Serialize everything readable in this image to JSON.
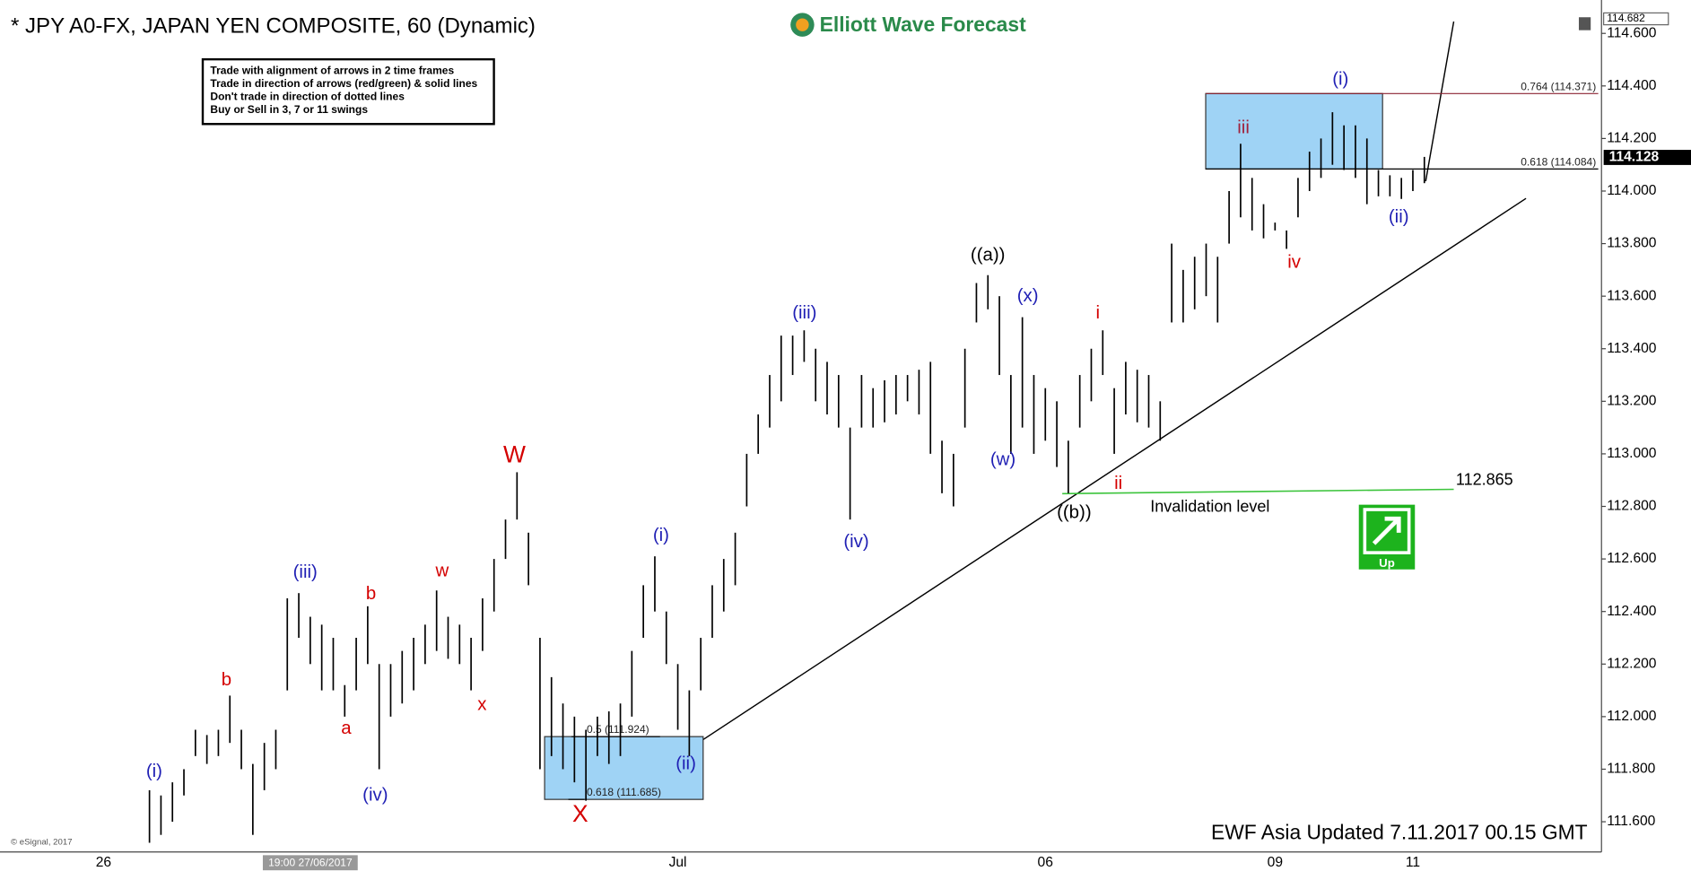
{
  "chart_data": {
    "type": "ohlc",
    "title": "* JPY A0-FX, JAPAN YEN COMPOSITE, 60 (Dynamic)",
    "brand": "Elliott Wave Forecast",
    "notes": [
      "Trade with alignment of arrows in 2 time frames",
      "Trade in direction of arrows (red/green) & solid lines",
      "Don't trade in direction of dotted lines",
      "Buy or Sell in 3, 7 or 11 swings"
    ],
    "footer": "EWF Asia Updated 7.11.2017 00.15 GMT",
    "copyright": "© eSignal, 2017",
    "color": "#000000",
    "categories": [
      "26",
      null,
      null,
      null,
      null,
      null,
      null,
      null,
      null,
      null,
      null,
      null,
      null,
      null,
      null,
      null,
      null,
      null,
      "19:00 27/06/2017",
      null,
      null,
      null,
      null,
      null,
      null,
      null,
      null,
      null,
      null,
      null,
      null,
      null,
      null,
      null,
      null,
      null,
      null,
      null,
      null,
      null,
      null,
      null,
      null,
      null,
      null,
      null,
      null,
      null,
      null,
      null,
      "Jul",
      null,
      null,
      null,
      null,
      null,
      null,
      null,
      null,
      null,
      null,
      null,
      null,
      null,
      null,
      null,
      null,
      null,
      null,
      null,
      null,
      null,
      null,
      null,
      null,
      null,
      null,
      null,
      null,
      null,
      null,
      null,
      "06",
      null,
      null,
      null,
      null,
      null,
      null,
      null,
      null,
      null,
      null,
      null,
      null,
      null,
      null,
      null,
      null,
      null,
      null,
      null,
      "09",
      null,
      null,
      null,
      null,
      null,
      null,
      null,
      null,
      null,
      null,
      null,
      "11",
      null
    ],
    "low": [
      null,
      null,
      null,
      null,
      111.52,
      111.55,
      111.6,
      111.7,
      111.85,
      111.82,
      111.85,
      111.9,
      111.8,
      111.55,
      111.72,
      111.8,
      112.1,
      112.3,
      112.2,
      112.1,
      112.1,
      112.0,
      112.1,
      112.2,
      111.8,
      112.0,
      112.05,
      112.1,
      112.2,
      112.25,
      112.22,
      112.2,
      112.1,
      112.25,
      112.4,
      112.6,
      112.75,
      112.5,
      111.8,
      111.85,
      111.8,
      111.75,
      111.68,
      111.85,
      111.82,
      111.85,
      112.0,
      112.3,
      112.4,
      112.2,
      111.95,
      111.85,
      112.1,
      112.3,
      112.4,
      112.5,
      112.8,
      113.0,
      113.1,
      113.2,
      113.3,
      113.35,
      113.2,
      113.15,
      113.1,
      112.75,
      113.1,
      113.1,
      113.12,
      113.15,
      113.2,
      113.15,
      113.0,
      112.85,
      112.8,
      113.1,
      113.5,
      113.55,
      113.3,
      113.0,
      113.1,
      113.0,
      113.05,
      112.95,
      112.85,
      113.1,
      113.2,
      113.3,
      113.0,
      113.15,
      113.12,
      113.1,
      113.05,
      113.5,
      113.5,
      113.55,
      113.6,
      113.5,
      113.8,
      113.9,
      113.85,
      113.82,
      113.85,
      113.78,
      113.9,
      114.0,
      114.05,
      114.1,
      114.08,
      114.05,
      113.95,
      113.98,
      113.98,
      113.97,
      114.0,
      114.03
    ],
    "high": [
      null,
      null,
      null,
      null,
      111.72,
      111.7,
      111.75,
      111.8,
      111.95,
      111.93,
      111.95,
      112.08,
      111.95,
      111.82,
      111.9,
      111.95,
      112.45,
      112.47,
      112.38,
      112.35,
      112.3,
      112.12,
      112.3,
      112.42,
      112.2,
      112.2,
      112.25,
      112.3,
      112.35,
      112.48,
      112.38,
      112.35,
      112.3,
      112.45,
      112.6,
      112.75,
      112.93,
      112.7,
      112.3,
      112.15,
      112.05,
      112.0,
      111.95,
      112.0,
      112.02,
      112.05,
      112.25,
      112.5,
      112.61,
      112.4,
      112.2,
      112.1,
      112.3,
      112.5,
      112.6,
      112.7,
      113.0,
      113.15,
      113.3,
      113.45,
      113.45,
      113.47,
      113.4,
      113.35,
      113.3,
      113.1,
      113.3,
      113.25,
      113.28,
      113.3,
      113.3,
      113.32,
      113.35,
      113.05,
      113.0,
      113.4,
      113.65,
      113.68,
      113.6,
      113.3,
      113.52,
      113.3,
      113.25,
      113.2,
      113.05,
      113.3,
      113.4,
      113.47,
      113.25,
      113.35,
      113.32,
      113.3,
      113.2,
      113.8,
      113.7,
      113.75,
      113.8,
      113.75,
      114.0,
      114.18,
      114.05,
      113.95,
      113.88,
      113.85,
      114.05,
      114.15,
      114.2,
      114.3,
      114.25,
      114.25,
      114.2,
      114.08,
      114.06,
      114.05,
      114.08,
      114.13
    ],
    "ylim": [
      111.485,
      114.686
    ],
    "yticks": [
      {
        "value": 111.6,
        "label": "111.600"
      },
      {
        "value": 111.8,
        "label": "111.800"
      },
      {
        "value": 112.0,
        "label": "112.000"
      },
      {
        "value": 112.2,
        "label": "112.200"
      },
      {
        "value": 112.4,
        "label": "112.400"
      },
      {
        "value": 112.6,
        "label": "112.600"
      },
      {
        "value": 112.8,
        "label": "112.800"
      },
      {
        "value": 113.0,
        "label": "113.000"
      },
      {
        "value": 113.2,
        "label": "113.200"
      },
      {
        "value": 113.4,
        "label": "113.400"
      },
      {
        "value": 113.6,
        "label": "113.600"
      },
      {
        "value": 113.8,
        "label": "113.800"
      },
      {
        "value": 114.0,
        "label": "114.000"
      },
      {
        "value": 114.2,
        "label": "114.200"
      },
      {
        "value": 114.4,
        "label": "114.400"
      },
      {
        "value": 114.6,
        "label": "114.600"
      }
    ],
    "last_price": {
      "value": 114.128,
      "label": "114.128"
    },
    "top_price": {
      "value": 114.682,
      "label": "114.682"
    },
    "fib_levels": [
      {
        "value": 114.371,
        "label": "0.764 (114.371)"
      },
      {
        "value": 114.084,
        "label": "0.618 (114.084)"
      },
      {
        "value": 111.924,
        "label": "0.5 (111.924)"
      },
      {
        "value": 111.685,
        "label": "0.618 (111.685)"
      }
    ],
    "invalidation": {
      "value": 112.865,
      "label": "112.865",
      "text": "Invalidation level"
    },
    "signal": "Up",
    "wave_labels": [
      {
        "text": "(i)",
        "color": "#1f1fb4"
      },
      {
        "text": "b",
        "color": "#d40000"
      },
      {
        "text": "(iii)",
        "color": "#1f1fb4"
      },
      {
        "text": "a",
        "color": "#d40000"
      },
      {
        "text": "b",
        "color": "#d40000"
      },
      {
        "text": "(iv)",
        "color": "#1f1fb4"
      },
      {
        "text": "w",
        "color": "#d40000"
      },
      {
        "text": "x",
        "color": "#d40000"
      },
      {
        "text": "W",
        "color": "#d40000"
      },
      {
        "text": "X",
        "color": "#d40000"
      },
      {
        "text": "(i)",
        "color": "#1f1fb4"
      },
      {
        "text": "(ii)",
        "color": "#1f1fb4"
      },
      {
        "text": "(iii)",
        "color": "#1f1fb4"
      },
      {
        "text": "(iv)",
        "color": "#1f1fb4"
      },
      {
        "text": "((a))",
        "color": "#000000"
      },
      {
        "text": "(x)",
        "color": "#1f1fb4"
      },
      {
        "text": "(w)",
        "color": "#1f1fb4"
      },
      {
        "text": "((b))",
        "color": "#000000"
      },
      {
        "text": "i",
        "color": "#d40000"
      },
      {
        "text": "ii",
        "color": "#d40000"
      },
      {
        "text": "iii",
        "color": "#a0203a"
      },
      {
        "text": "iv",
        "color": "#d40000"
      },
      {
        "text": "(i)",
        "color": "#1f1fb4"
      },
      {
        "text": "(ii)",
        "color": "#1f1fb4"
      }
    ]
  }
}
